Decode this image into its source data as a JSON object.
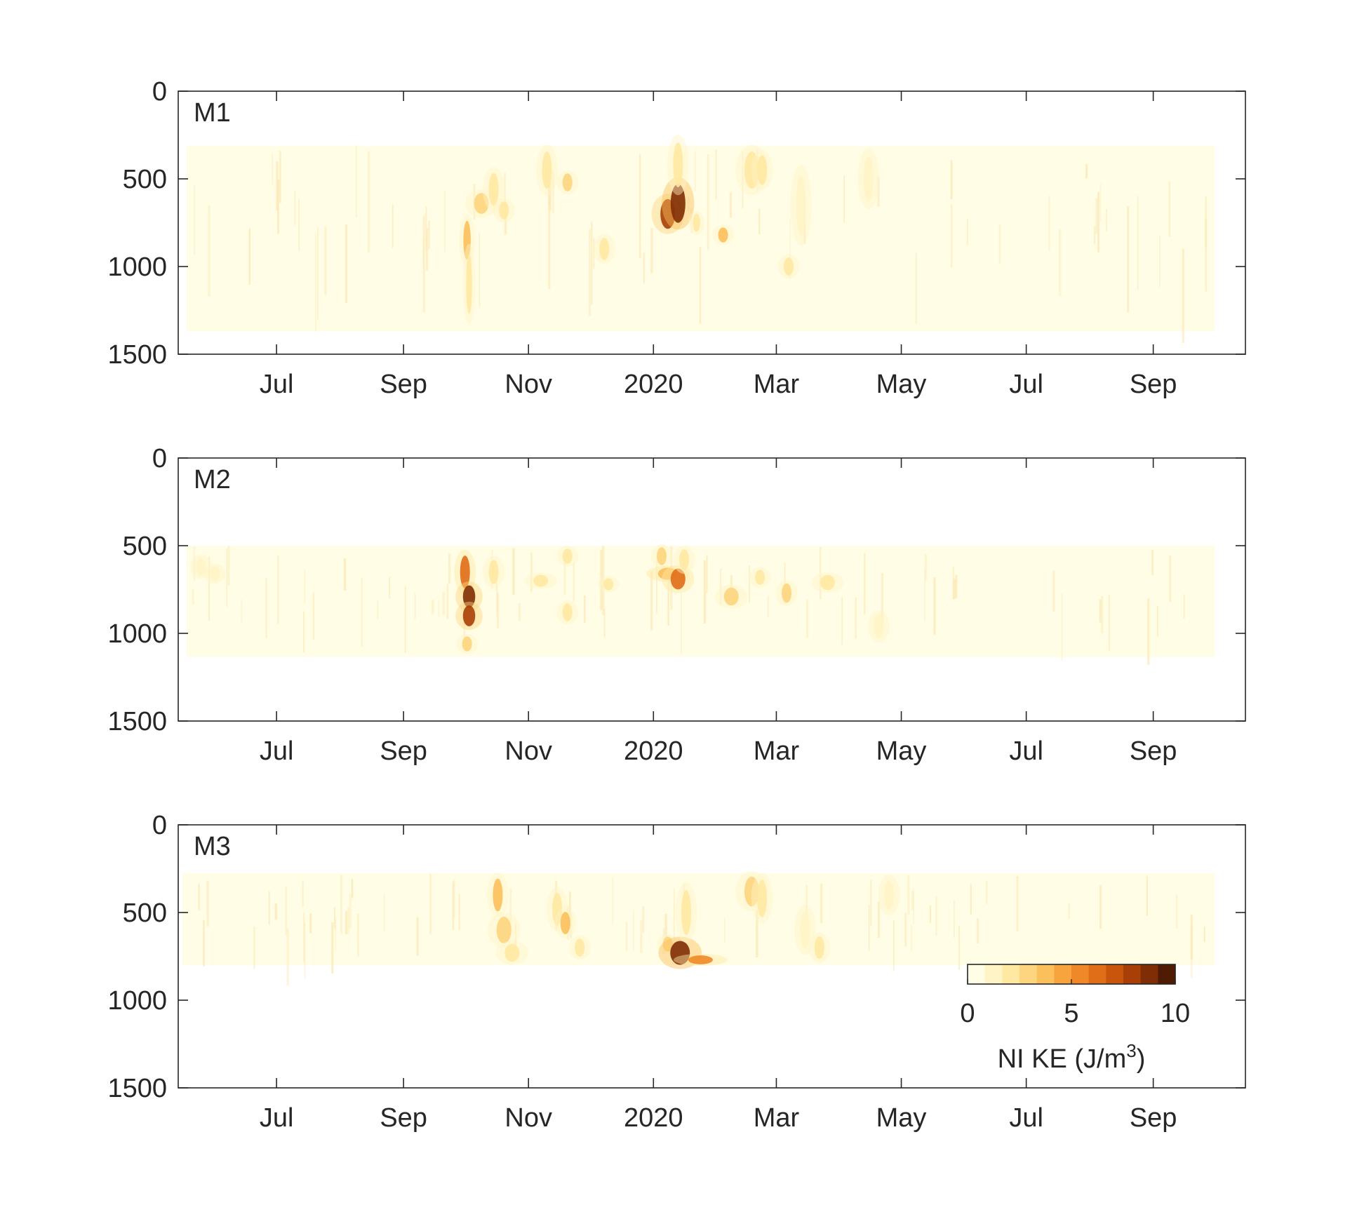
{
  "chart_data": [
    {
      "type": "heatmap",
      "panel_label": "M1",
      "x_tick_labels": [
        "Jul",
        "Sep",
        "Nov",
        "2020",
        "Mar",
        "May",
        "Jul",
        "Sep"
      ],
      "x_tick_dates": [
        "2019-07-01",
        "2019-09-01",
        "2019-11-01",
        "2020-01-01",
        "2020-03-01",
        "2020-05-01",
        "2020-07-01",
        "2020-09-01"
      ],
      "xlim": [
        "2019-05-14",
        "2020-10-16"
      ],
      "y_tick_labels": [
        "0",
        "500",
        "1000",
        "1500"
      ],
      "y_tick_values": [
        0,
        500,
        1000,
        1500
      ],
      "ylim": [
        0,
        1500
      ],
      "y_reversed": true,
      "data_extent": {
        "start": "2019-05-18",
        "end": "2020-10-01",
        "depth_top": 310,
        "depth_bottom": 1370
      },
      "features": [
        {
          "date": "2019-10-02",
          "depth": 850,
          "depth_len": 260,
          "days_width": 1.5,
          "value": 3.5
        },
        {
          "date": "2019-10-03",
          "depth": 1100,
          "depth_len": 400,
          "days_width": 1.2,
          "value": 2.0
        },
        {
          "date": "2019-10-09",
          "depth": 640,
          "depth_len": 140,
          "days_width": 3,
          "value": 2.5
        },
        {
          "date": "2019-10-15",
          "depth": 560,
          "depth_len": 220,
          "days_width": 2,
          "value": 1.8
        },
        {
          "date": "2019-10-20",
          "depth": 680,
          "depth_len": 120,
          "days_width": 2,
          "value": 1.5
        },
        {
          "date": "2019-11-10",
          "depth": 450,
          "depth_len": 250,
          "days_width": 2,
          "value": 1.8
        },
        {
          "date": "2019-11-20",
          "depth": 520,
          "depth_len": 120,
          "days_width": 2,
          "value": 2.5
        },
        {
          "date": "2019-12-08",
          "depth": 900,
          "depth_len": 150,
          "days_width": 2,
          "value": 1.5
        },
        {
          "date": "2020-01-08",
          "depth": 700,
          "depth_len": 200,
          "days_width": 3,
          "value": 8.0
        },
        {
          "date": "2020-01-13",
          "depth": 640,
          "depth_len": 260,
          "days_width": 3,
          "value": 9.5
        },
        {
          "date": "2020-01-13",
          "depth": 420,
          "depth_len": 300,
          "days_width": 2,
          "value": 2.0
        },
        {
          "date": "2020-01-22",
          "depth": 750,
          "depth_len": 120,
          "days_width": 1.5,
          "value": 2.0
        },
        {
          "date": "2020-02-04",
          "depth": 820,
          "depth_len": 100,
          "days_width": 2,
          "value": 3.5
        },
        {
          "date": "2020-02-18",
          "depth": 450,
          "depth_len": 250,
          "days_width": 3,
          "value": 2.0
        },
        {
          "date": "2020-02-23",
          "depth": 450,
          "depth_len": 200,
          "days_width": 2,
          "value": 1.5
        },
        {
          "date": "2020-03-07",
          "depth": 1000,
          "depth_len": 120,
          "days_width": 2,
          "value": 2.0
        },
        {
          "date": "2020-03-13",
          "depth": 650,
          "depth_len": 400,
          "days_width": 2,
          "value": 1.2
        },
        {
          "date": "2020-04-15",
          "depth": 500,
          "depth_len": 300,
          "days_width": 2,
          "value": 0.7
        }
      ]
    },
    {
      "type": "heatmap",
      "panel_label": "M2",
      "x_tick_labels": [
        "Jul",
        "Sep",
        "Nov",
        "2020",
        "Mar",
        "May",
        "Jul",
        "Sep"
      ],
      "x_tick_dates": [
        "2019-07-01",
        "2019-09-01",
        "2019-11-01",
        "2020-01-01",
        "2020-03-01",
        "2020-05-01",
        "2020-07-01",
        "2020-09-01"
      ],
      "xlim": [
        "2019-05-14",
        "2020-10-16"
      ],
      "y_tick_labels": [
        "0",
        "500",
        "1000",
        "1500"
      ],
      "y_tick_values": [
        0,
        500,
        1000,
        1500
      ],
      "ylim": [
        0,
        1500
      ],
      "y_reversed": true,
      "data_extent": {
        "start": "2019-05-18",
        "end": "2020-10-01",
        "depth_top": 500,
        "depth_bottom": 1135
      },
      "features": [
        {
          "date": "2019-05-25",
          "depth": 620,
          "depth_len": 120,
          "days_width": 2,
          "value": 1.2
        },
        {
          "date": "2019-06-01",
          "depth": 660,
          "depth_len": 100,
          "days_width": 2,
          "value": 1.0
        },
        {
          "date": "2019-10-01",
          "depth": 650,
          "depth_len": 220,
          "days_width": 2,
          "value": 6.0
        },
        {
          "date": "2019-10-03",
          "depth": 790,
          "depth_len": 150,
          "days_width": 2.5,
          "value": 9.0
        },
        {
          "date": "2019-10-03",
          "depth": 900,
          "depth_len": 140,
          "days_width": 2.5,
          "value": 8.5
        },
        {
          "date": "2019-10-02",
          "depth": 1060,
          "depth_len": 100,
          "days_width": 2,
          "value": 2.5
        },
        {
          "date": "2019-10-15",
          "depth": 650,
          "depth_len": 160,
          "days_width": 2,
          "value": 1.5
        },
        {
          "date": "2019-11-07",
          "depth": 700,
          "depth_len": 80,
          "days_width": 3,
          "value": 1.8
        },
        {
          "date": "2019-11-20",
          "depth": 560,
          "depth_len": 100,
          "days_width": 2,
          "value": 2.0
        },
        {
          "date": "2019-11-20",
          "depth": 880,
          "depth_len": 120,
          "days_width": 2,
          "value": 2.0
        },
        {
          "date": "2019-12-10",
          "depth": 720,
          "depth_len": 80,
          "days_width": 2,
          "value": 1.5
        },
        {
          "date": "2020-01-05",
          "depth": 560,
          "depth_len": 120,
          "days_width": 2,
          "value": 2.5
        },
        {
          "date": "2020-01-08",
          "depth": 660,
          "depth_len": 80,
          "days_width": 4,
          "value": 4.0
        },
        {
          "date": "2020-01-13",
          "depth": 690,
          "depth_len": 140,
          "days_width": 3,
          "value": 6.0
        },
        {
          "date": "2020-01-16",
          "depth": 580,
          "depth_len": 140,
          "days_width": 2,
          "value": 2.0
        },
        {
          "date": "2020-02-08",
          "depth": 790,
          "depth_len": 120,
          "days_width": 3,
          "value": 3.0
        },
        {
          "date": "2020-02-22",
          "depth": 680,
          "depth_len": 100,
          "days_width": 2,
          "value": 1.5
        },
        {
          "date": "2020-03-06",
          "depth": 770,
          "depth_len": 130,
          "days_width": 2,
          "value": 3.0
        },
        {
          "date": "2020-03-26",
          "depth": 710,
          "depth_len": 100,
          "days_width": 3,
          "value": 2.0
        },
        {
          "date": "2020-04-20",
          "depth": 960,
          "depth_len": 160,
          "days_width": 2,
          "value": 0.6
        }
      ]
    },
    {
      "type": "heatmap",
      "panel_label": "M3",
      "x_tick_labels": [
        "Jul",
        "Sep",
        "Nov",
        "2020",
        "Mar",
        "May",
        "Jul",
        "Sep"
      ],
      "x_tick_dates": [
        "2019-07-01",
        "2019-09-01",
        "2019-11-01",
        "2020-01-01",
        "2020-03-01",
        "2020-05-01",
        "2020-07-01",
        "2020-09-01"
      ],
      "xlim": [
        "2019-05-14",
        "2020-10-16"
      ],
      "y_tick_labels": [
        "0",
        "500",
        "1000",
        "1500"
      ],
      "y_tick_values": [
        0,
        500,
        1000,
        1500
      ],
      "ylim": [
        0,
        1500
      ],
      "y_reversed": true,
      "data_extent": {
        "start": "2019-05-16",
        "end": "2020-10-01",
        "depth_top": 275,
        "depth_bottom": 800
      },
      "features": [
        {
          "date": "2019-10-17",
          "depth": 400,
          "depth_len": 220,
          "days_width": 2,
          "value": 3.5
        },
        {
          "date": "2019-10-20",
          "depth": 600,
          "depth_len": 180,
          "days_width": 3,
          "value": 2.5
        },
        {
          "date": "2019-10-24",
          "depth": 730,
          "depth_len": 120,
          "days_width": 3,
          "value": 1.8
        },
        {
          "date": "2019-11-15",
          "depth": 480,
          "depth_len": 220,
          "days_width": 2,
          "value": 2.0
        },
        {
          "date": "2019-11-19",
          "depth": 560,
          "depth_len": 150,
          "days_width": 2,
          "value": 3.5
        },
        {
          "date": "2019-11-26",
          "depth": 700,
          "depth_len": 120,
          "days_width": 2,
          "value": 1.5
        },
        {
          "date": "2020-01-08",
          "depth": 680,
          "depth_len": 100,
          "days_width": 2,
          "value": 3.0
        },
        {
          "date": "2020-01-14",
          "depth": 730,
          "depth_len": 160,
          "days_width": 4,
          "value": 9.5
        },
        {
          "date": "2020-01-17",
          "depth": 500,
          "depth_len": 300,
          "days_width": 2,
          "value": 1.5
        },
        {
          "date": "2020-01-24",
          "depth": 770,
          "depth_len": 60,
          "days_width": 5,
          "value": 5.0
        },
        {
          "date": "2020-02-18",
          "depth": 380,
          "depth_len": 200,
          "days_width": 3,
          "value": 2.5
        },
        {
          "date": "2020-02-23",
          "depth": 420,
          "depth_len": 250,
          "days_width": 2,
          "value": 2.0
        },
        {
          "date": "2020-03-15",
          "depth": 600,
          "depth_len": 250,
          "days_width": 2,
          "value": 1.2
        },
        {
          "date": "2020-03-22",
          "depth": 700,
          "depth_len": 150,
          "days_width": 2,
          "value": 1.5
        },
        {
          "date": "2020-04-25",
          "depth": 400,
          "depth_len": 200,
          "days_width": 2,
          "value": 0.7
        }
      ]
    }
  ],
  "colorbar": {
    "label": "NI KE (J/m",
    "label_sup": "3",
    "label_end": ")",
    "tick_labels": [
      "0",
      "5",
      "10"
    ],
    "tick_values": [
      0,
      5,
      10
    ],
    "range": [
      0,
      10
    ],
    "colormap": [
      "#fffde6",
      "#fff4c6",
      "#ffe8a2",
      "#fdd57e",
      "#fbbf5c",
      "#f7a43e",
      "#ef8828",
      "#e06d17",
      "#c9540c",
      "#a83f06",
      "#7f2d04",
      "#4f1b02"
    ]
  }
}
